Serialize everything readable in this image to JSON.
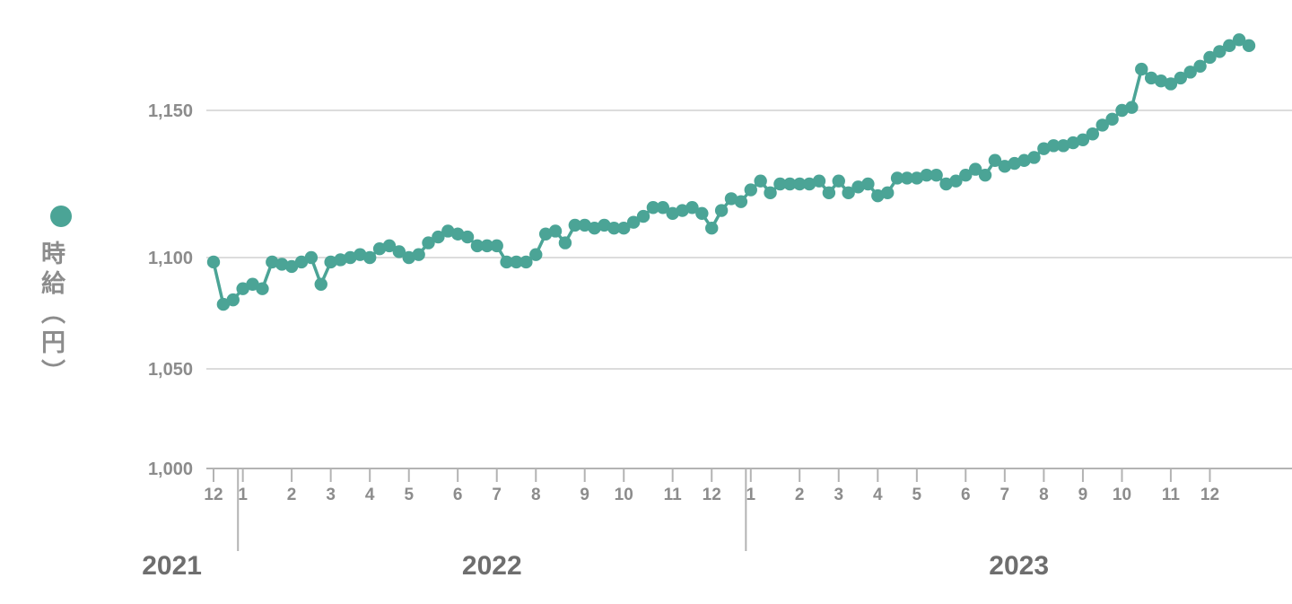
{
  "legend": {
    "label": "時給（円）"
  },
  "colors": {
    "series": "#4BA496",
    "grid": "#DCDCDC",
    "axis": "#B3B3B3",
    "tick_label": "#8C8C8C",
    "year_label": "#6E6E6E"
  },
  "y_axis": {
    "ticks": [
      {
        "label": "1,150",
        "value": 1150
      },
      {
        "label": "1,100",
        "value": 1100
      },
      {
        "label": "1,050",
        "value": 1050
      },
      {
        "label": "1,000",
        "value": 1000
      }
    ]
  },
  "x_axis": {
    "year_labels": [
      "2021",
      "2022",
      "2023"
    ]
  },
  "chart_data": {
    "type": "line",
    "title": "",
    "xlabel": "",
    "ylabel": "時給（円）",
    "unit": "円",
    "frequency": "weekly",
    "legend_position": "left",
    "grid": true,
    "ylim": [
      1000,
      1180
    ],
    "y_tick_values": [
      1000,
      1050,
      1100,
      1150
    ],
    "series": [
      {
        "year": 2021,
        "month": 12,
        "weekly_values": [
          1098,
          1079,
          1081
        ]
      },
      {
        "year": 2022,
        "month": 1,
        "weekly_values": [
          1086,
          1088,
          1086,
          1098,
          1097
        ]
      },
      {
        "year": 2022,
        "month": 2,
        "weekly_values": [
          1096,
          1098,
          1100,
          1088
        ]
      },
      {
        "year": 2022,
        "month": 3,
        "weekly_values": [
          1098,
          1099,
          1100,
          1101
        ]
      },
      {
        "year": 2022,
        "month": 4,
        "weekly_values": [
          1100,
          1103,
          1104,
          1102
        ]
      },
      {
        "year": 2022,
        "month": 5,
        "weekly_values": [
          1100,
          1101,
          1105,
          1107,
          1109
        ]
      },
      {
        "year": 2022,
        "month": 6,
        "weekly_values": [
          1108,
          1107,
          1104,
          1104
        ]
      },
      {
        "year": 2022,
        "month": 7,
        "weekly_values": [
          1104,
          1098,
          1098,
          1098
        ]
      },
      {
        "year": 2022,
        "month": 8,
        "weekly_values": [
          1101,
          1108,
          1109,
          1105,
          1111
        ]
      },
      {
        "year": 2022,
        "month": 9,
        "weekly_values": [
          1111,
          1110,
          1111,
          1110
        ]
      },
      {
        "year": 2022,
        "month": 10,
        "weekly_values": [
          1110,
          1112,
          1114,
          1117,
          1117
        ]
      },
      {
        "year": 2022,
        "month": 11,
        "weekly_values": [
          1115,
          1116,
          1117,
          1115
        ]
      },
      {
        "year": 2022,
        "month": 12,
        "weekly_values": [
          1110,
          1116,
          1120,
          1119
        ]
      },
      {
        "year": 2023,
        "month": 1,
        "weekly_values": [
          1123,
          1126,
          1122,
          1125,
          1125
        ]
      },
      {
        "year": 2023,
        "month": 2,
        "weekly_values": [
          1125,
          1125,
          1126,
          1122
        ]
      },
      {
        "year": 2023,
        "month": 3,
        "weekly_values": [
          1126,
          1122,
          1124,
          1125
        ]
      },
      {
        "year": 2023,
        "month": 4,
        "weekly_values": [
          1121,
          1122,
          1127,
          1127
        ]
      },
      {
        "year": 2023,
        "month": 5,
        "weekly_values": [
          1127,
          1128,
          1128,
          1125,
          1126
        ]
      },
      {
        "year": 2023,
        "month": 6,
        "weekly_values": [
          1128,
          1130,
          1128,
          1133
        ]
      },
      {
        "year": 2023,
        "month": 7,
        "weekly_values": [
          1131,
          1132,
          1133,
          1134
        ]
      },
      {
        "year": 2023,
        "month": 8,
        "weekly_values": [
          1137,
          1138,
          1138,
          1139
        ]
      },
      {
        "year": 2023,
        "month": 9,
        "weekly_values": [
          1140,
          1142,
          1145,
          1147
        ]
      },
      {
        "year": 2023,
        "month": 10,
        "weekly_values": [
          1150,
          1151,
          1164,
          1161,
          1160
        ]
      },
      {
        "year": 2023,
        "month": 11,
        "weekly_values": [
          1159,
          1161,
          1163,
          1165
        ]
      },
      {
        "year": 2023,
        "month": 12,
        "weekly_values": [
          1168,
          1170,
          1172,
          1174,
          1172
        ]
      }
    ]
  }
}
